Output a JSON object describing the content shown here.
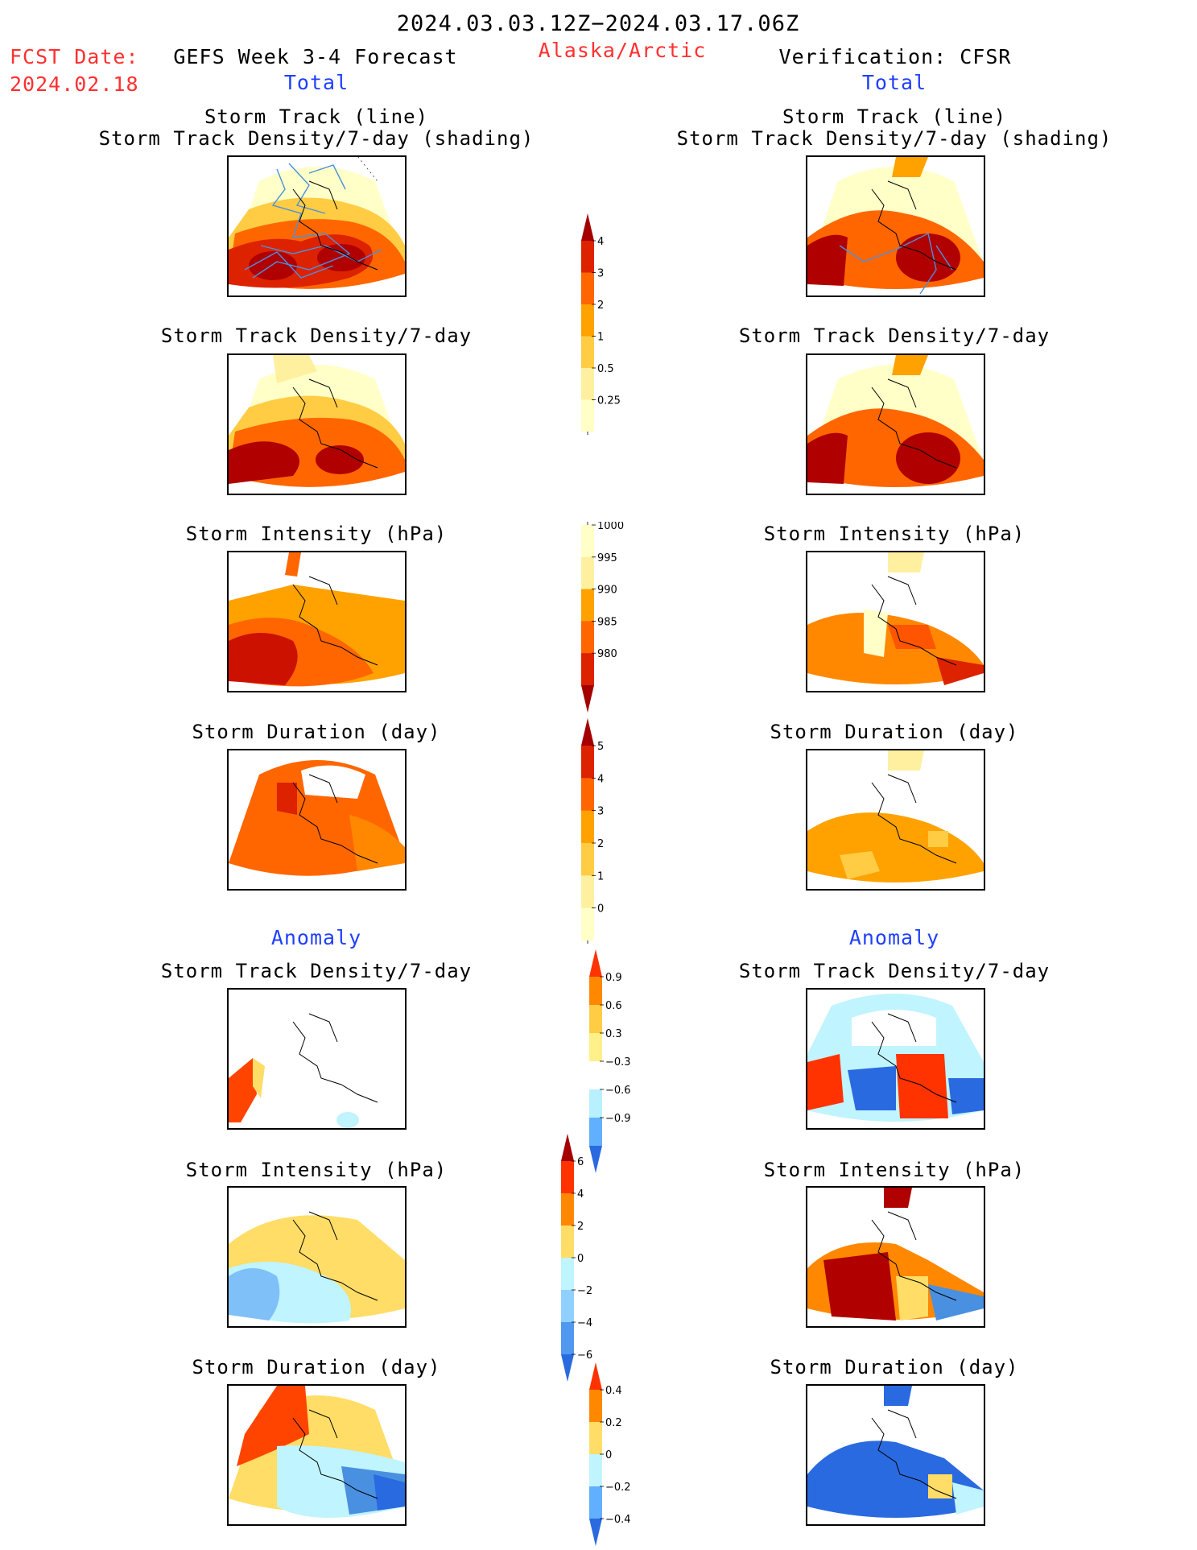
{
  "header": {
    "period": "2024.03.03.12Z−2024.03.17.06Z",
    "fcst_label": "FCST Date:",
    "fcst_date": "2024.02.18",
    "model": "GEFS Week 3-4 Forecast",
    "region": "Alaska/Arctic",
    "verification": "Verification: CFSR"
  },
  "sections": {
    "total_left": "Total",
    "total_right": "Total",
    "anomaly_left": "Anomaly",
    "anomaly_right": "Anomaly"
  },
  "titles": {
    "track_line": "Storm Track (line)",
    "track_shading": "Storm Track Density/7-day (shading)",
    "density": "Storm Track Density/7-day",
    "intensity": "Storm Intensity (hPa)",
    "duration": "Storm Duration (day)"
  },
  "colorbars": {
    "density": {
      "ticks": [
        "4",
        "3",
        "2",
        "1",
        "0.5",
        "0.25"
      ],
      "colors": [
        "#a50000",
        "#dd2200",
        "#ff6600",
        "#ffa200",
        "#ffcc44",
        "#fff0a0",
        "#ffffc8"
      ]
    },
    "intensity": {
      "ticks": [
        "1000",
        "995",
        "990",
        "985",
        "980"
      ],
      "colors": [
        "#ffffc8",
        "#fff0a0",
        "#ffa200",
        "#ff6600",
        "#dd2200",
        "#a50000"
      ]
    },
    "duration": {
      "ticks": [
        "5",
        "4",
        "3",
        "2",
        "1",
        "0"
      ],
      "colors": [
        "#a50000",
        "#dd2200",
        "#ff6600",
        "#ffa200",
        "#ffcc44",
        "#fff0a0",
        "#ffffc8"
      ]
    },
    "anom_density": {
      "ticks": [
        "0.9",
        "0.6",
        "0.3",
        "−0.3",
        "−0.6",
        "−0.9"
      ],
      "colors": [
        "#ff3300",
        "#ff8800",
        "#ffcc44",
        "#fff08a",
        "#ffffff",
        "#b8f0ff",
        "#60b0ff",
        "#2a6ae0"
      ]
    },
    "anom_intensity": {
      "ticks": [
        "6",
        "4",
        "2",
        "0",
        "−2",
        "−4",
        "−6"
      ],
      "colors": [
        "#a50000",
        "#ff3300",
        "#ff8800",
        "#ffdd66",
        "#c0f4ff",
        "#90d0ff",
        "#5098f0",
        "#2a6ae0"
      ]
    },
    "anom_duration": {
      "ticks": [
        "0.4",
        "0.2",
        "0",
        "−0.2",
        "−0.4"
      ],
      "colors": [
        "#ff3300",
        "#ff8800",
        "#ffdd66",
        "#c0f4ff",
        "#60b0ff",
        "#2a6ae0"
      ]
    }
  }
}
